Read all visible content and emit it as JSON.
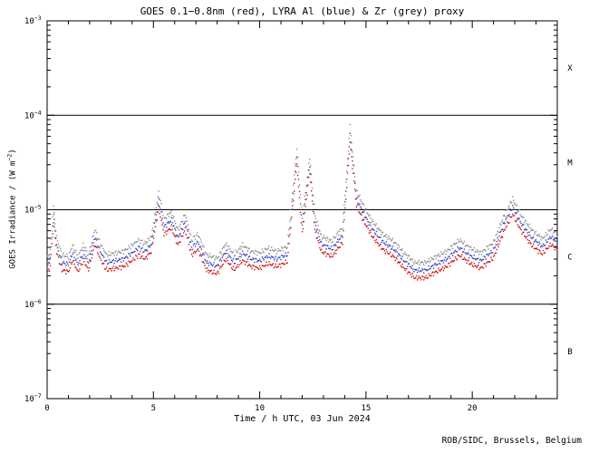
{
  "chart_data": {
    "type": "scatter",
    "title": "GOES 0.1−0.8nm (red), LYRA Al (blue) & Zr (grey) proxy",
    "xlabel": "Time / h UTC, 03 Jun 2024",
    "ylabel_parts": [
      "GOES Irradiance / (W m",
      "−2",
      ")"
    ],
    "x_range_hours": [
      0,
      24
    ],
    "x_major_ticks": [
      0,
      5,
      10,
      15,
      20
    ],
    "x_minor_step": 1,
    "y_log_range_exponents": [
      -7,
      -3
    ],
    "y_decade_exponents": [
      -3,
      -4,
      -5,
      -6,
      -7
    ],
    "grid": false,
    "legend_position": "in-title",
    "flare_class_boundaries": [
      0.0001,
      1e-05,
      1e-06
    ],
    "flare_class_bands": [
      {
        "label": "X",
        "range": [
          0.0001,
          0.001
        ]
      },
      {
        "label": "M",
        "range": [
          1e-05,
          0.0001
        ]
      },
      {
        "label": "C",
        "range": [
          1e-06,
          1e-05
        ]
      },
      {
        "label": "B",
        "range": [
          1e-07,
          1e-06
        ]
      }
    ],
    "series": [
      {
        "name": "GOES 0.1-0.8nm",
        "color": "#cc1111",
        "scale": 1.0
      },
      {
        "name": "LYRA Al proxy",
        "color": "#3344bb",
        "scale": 1.2
      },
      {
        "name": "LYRA Zr proxy",
        "color": "#8f8f8f",
        "scale": 1.45
      }
    ],
    "base_points_t_hours_flux_Wm2": [
      [
        0.0,
        2.1e-06
      ],
      [
        0.15,
        2.5e-06
      ],
      [
        0.3,
        7.5e-06
      ],
      [
        0.45,
        3.5e-06
      ],
      [
        0.7,
        2.3e-06
      ],
      [
        1.0,
        2.2e-06
      ],
      [
        1.2,
        2.9e-06
      ],
      [
        1.45,
        2.2e-06
      ],
      [
        1.7,
        2.9e-06
      ],
      [
        1.95,
        2.3e-06
      ],
      [
        2.25,
        4.3e-06
      ],
      [
        2.5,
        3e-06
      ],
      [
        2.8,
        2.3e-06
      ],
      [
        3.2,
        2.4e-06
      ],
      [
        3.6,
        2.5e-06
      ],
      [
        4.0,
        2.9e-06
      ],
      [
        4.3,
        3.3e-06
      ],
      [
        4.6,
        3e-06
      ],
      [
        4.9,
        3.6e-06
      ],
      [
        5.25,
        1.05e-05
      ],
      [
        5.5,
        5.5e-06
      ],
      [
        5.85,
        6.5e-06
      ],
      [
        6.15,
        4.2e-06
      ],
      [
        6.5,
        6.2e-06
      ],
      [
        6.8,
        3.3e-06
      ],
      [
        7.1,
        3.8e-06
      ],
      [
        7.5,
        2.3e-06
      ],
      [
        8.0,
        2.1e-06
      ],
      [
        8.4,
        3e-06
      ],
      [
        8.8,
        2.3e-06
      ],
      [
        9.2,
        2.9e-06
      ],
      [
        9.6,
        2.5e-06
      ],
      [
        10.0,
        2.4e-06
      ],
      [
        10.4,
        2.7e-06
      ],
      [
        10.8,
        2.5e-06
      ],
      [
        11.3,
        2.8e-06
      ],
      [
        11.75,
        3.1e-05
      ],
      [
        12.0,
        5.5e-06
      ],
      [
        12.35,
        2.5e-05
      ],
      [
        12.6,
        6e-06
      ],
      [
        12.9,
        3.6e-06
      ],
      [
        13.4,
        3.2e-06
      ],
      [
        13.9,
        4.5e-06
      ],
      [
        14.25,
        5.2e-05
      ],
      [
        14.55,
        1.1e-05
      ],
      [
        14.9,
        7.5e-06
      ],
      [
        15.3,
        5.2e-06
      ],
      [
        15.8,
        3.8e-06
      ],
      [
        16.3,
        3.2e-06
      ],
      [
        16.8,
        2.4e-06
      ],
      [
        17.3,
        1.9e-06
      ],
      [
        17.8,
        1.9e-06
      ],
      [
        18.3,
        2.2e-06
      ],
      [
        18.8,
        2.5e-06
      ],
      [
        19.4,
        3.3e-06
      ],
      [
        19.9,
        2.7e-06
      ],
      [
        20.4,
        2.4e-06
      ],
      [
        21.0,
        3.1e-06
      ],
      [
        21.5,
        6e-06
      ],
      [
        21.9,
        9e-06
      ],
      [
        22.3,
        6e-06
      ],
      [
        22.8,
        4.2e-06
      ],
      [
        23.3,
        3.4e-06
      ],
      [
        23.7,
        4.3e-06
      ],
      [
        24.0,
        3.8e-06
      ]
    ]
  },
  "footer": {
    "credit": "ROB/SIDC, Brussels, Belgium"
  }
}
